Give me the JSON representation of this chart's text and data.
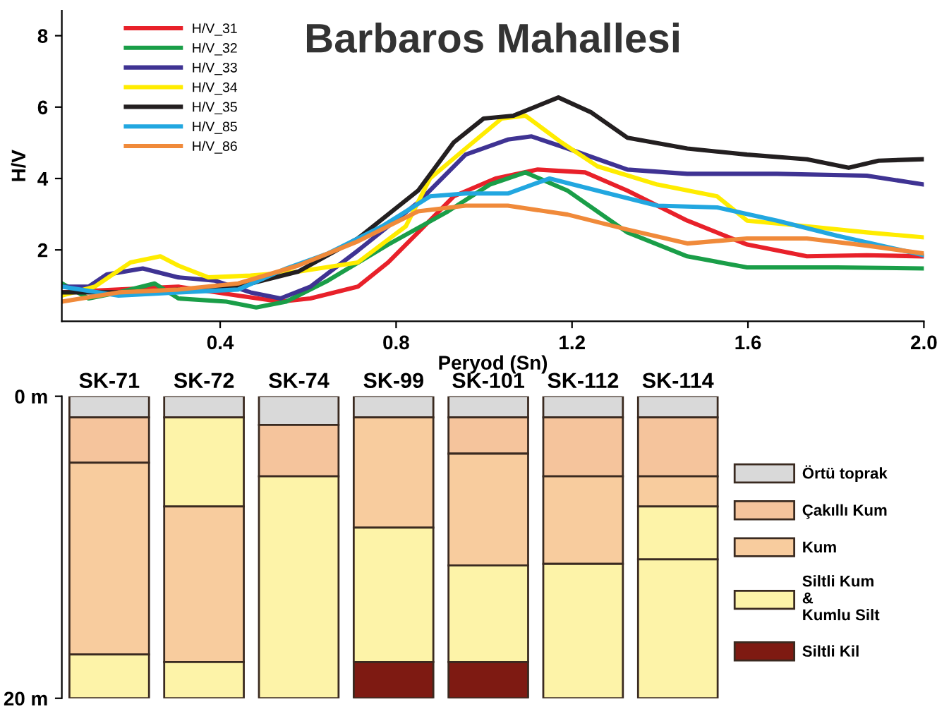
{
  "chart_data": [
    {
      "type": "line",
      "title": "Barbaros Mahallesi",
      "xlabel": "Peryod (Sn)",
      "ylabel": "H/V",
      "xlim": [
        0.04,
        2.0
      ],
      "ylim": [
        0,
        8.7
      ],
      "xticks": [
        0.4,
        0.8,
        1.2,
        1.6,
        {
          "value": 2.0,
          "label": "2.0"
        }
      ],
      "yticks": [
        2,
        4,
        6,
        8
      ],
      "legend": "top left",
      "grid": false,
      "marker": "none",
      "line_style": "solid",
      "series": [
        {
          "name": "H/V_31",
          "color": "#e8212a",
          "x": [
            0.04,
            0.169,
            0.305,
            0.441,
            0.537,
            0.605,
            0.713,
            0.782,
            0.85,
            0.931,
            1.026,
            1.122,
            1.23,
            1.326,
            1.462,
            1.598,
            1.734,
            1.87,
            2.0
          ],
          "values": [
            0.81,
            0.89,
            0.97,
            0.72,
            0.55,
            0.64,
            0.97,
            1.65,
            2.49,
            3.5,
            4.0,
            4.25,
            4.17,
            3.66,
            2.82,
            2.15,
            1.82,
            1.85,
            1.82
          ]
        },
        {
          "name": "H/V_32",
          "color": "#1a9e48",
          "x": [
            0.04,
            0.101,
            0.169,
            0.251,
            0.305,
            0.414,
            0.482,
            0.55,
            0.645,
            0.782,
            0.918,
            1.013,
            1.094,
            1.19,
            1.326,
            1.462,
            1.598,
            1.802,
            2.0
          ],
          "values": [
            1.06,
            0.64,
            0.81,
            1.06,
            0.64,
            0.55,
            0.39,
            0.55,
            1.14,
            2.15,
            3.08,
            3.83,
            4.17,
            3.66,
            2.49,
            1.82,
            1.51,
            1.51,
            1.48
          ]
        },
        {
          "name": "H/V_33",
          "color": "#3f3393",
          "x": [
            0.04,
            0.101,
            0.142,
            0.224,
            0.305,
            0.387,
            0.469,
            0.537,
            0.605,
            0.713,
            0.85,
            0.958,
            1.054,
            1.108,
            1.19,
            1.326,
            1.462,
            1.666,
            1.87,
            2.0
          ],
          "values": [
            0.97,
            0.97,
            1.31,
            1.48,
            1.23,
            1.14,
            0.81,
            0.64,
            0.97,
            1.98,
            3.33,
            4.67,
            5.09,
            5.18,
            4.84,
            4.25,
            4.13,
            4.13,
            4.08,
            3.83
          ]
        },
        {
          "name": "H/V_34",
          "color": "#ffec00",
          "x": [
            0.04,
            0.115,
            0.196,
            0.264,
            0.305,
            0.373,
            0.469,
            0.577,
            0.713,
            0.822,
            0.877,
            0.958,
            1.04,
            1.094,
            1.176,
            1.258,
            1.394,
            1.53,
            1.598,
            1.734,
            1.87,
            2.0
          ],
          "values": [
            0.72,
            0.97,
            1.65,
            1.82,
            1.56,
            1.23,
            1.28,
            1.39,
            1.65,
            2.66,
            4.0,
            4.84,
            5.68,
            5.76,
            5.01,
            4.34,
            3.83,
            3.5,
            2.82,
            2.66,
            2.49,
            2.35
          ]
        },
        {
          "name": "H/V_35",
          "color": "#231f20",
          "x": [
            0.04,
            0.169,
            0.441,
            0.577,
            0.713,
            0.85,
            0.931,
            0.999,
            1.067,
            1.169,
            1.244,
            1.326,
            1.462,
            1.598,
            1.734,
            1.829,
            1.897,
            2.0
          ],
          "values": [
            0.81,
            0.81,
            0.97,
            1.39,
            2.32,
            3.66,
            5.01,
            5.68,
            5.76,
            6.27,
            5.85,
            5.14,
            4.84,
            4.67,
            4.54,
            4.3,
            4.5,
            4.54
          ]
        },
        {
          "name": "H/V_85",
          "color": "#22a7e0",
          "x": [
            0.04,
            0.169,
            0.305,
            0.441,
            0.55,
            0.645,
            0.768,
            0.877,
            0.958,
            1.054,
            1.149,
            1.258,
            1.394,
            1.53,
            1.666,
            1.802,
            2.0
          ],
          "values": [
            0.97,
            0.72,
            0.81,
            0.89,
            1.48,
            1.9,
            2.66,
            3.5,
            3.58,
            3.58,
            4.0,
            3.66,
            3.24,
            3.19,
            2.82,
            2.4,
            1.85
          ]
        },
        {
          "name": "H/V_86",
          "color": "#f08a3a",
          "x": [
            0.04,
            0.169,
            0.305,
            0.441,
            0.577,
            0.713,
            0.85,
            0.958,
            1.054,
            1.19,
            1.326,
            1.462,
            1.598,
            1.734,
            1.87,
            2.0
          ],
          "values": [
            0.55,
            0.81,
            0.89,
            1.06,
            1.56,
            2.24,
            3.08,
            3.24,
            3.24,
            2.99,
            2.57,
            2.18,
            2.32,
            2.32,
            2.12,
            1.9
          ]
        }
      ]
    },
    {
      "type": "bar",
      "stacked": true,
      "categories": [
        "SK-71",
        "SK-72",
        "SK-74",
        "SK-99",
        "SK-101",
        "SK-112",
        "SK-114"
      ],
      "ylim": [
        20,
        0
      ],
      "yticks": [
        {
          "value": 0,
          "label": "0 m"
        },
        {
          "value": 20,
          "label": "20 m"
        }
      ],
      "tick_labels": "y",
      "legend": "right",
      "grid": false,
      "series": [
        {
          "name": "Örtü toprak",
          "color": "#d9d9d9",
          "values": [
            1.4,
            1.4,
            1.9,
            1.4,
            1.4,
            1.4,
            1.4
          ]
        },
        {
          "color": "#fdf3a8",
          "values": [
            null,
            5.9,
            null,
            null,
            null,
            null,
            null
          ]
        },
        {
          "name": "Çakıllı Kum",
          "color": "#f5c49c",
          "values": [
            3.0,
            null,
            3.4,
            null,
            2.4,
            3.9,
            3.9
          ]
        },
        {
          "name": "Kum",
          "color": "#f8cc9e",
          "values": [
            12.7,
            10.3,
            null,
            7.3,
            7.4,
            5.8,
            2.0
          ]
        },
        {
          "name": "Siltli Kum\n&\nKumlu Silt",
          "color": "#fdf3a8",
          "values": [
            2.9,
            2.4,
            14.7,
            8.9,
            6.4,
            8.9,
            3.5
          ]
        },
        {
          "color": "#fdf3a8",
          "values": [
            null,
            null,
            null,
            null,
            null,
            null,
            9.2
          ]
        },
        {
          "name": "Siltli Kil",
          "color": "#7e1a12",
          "values": [
            null,
            null,
            null,
            2.4,
            2.4,
            null,
            null
          ]
        }
      ]
    }
  ]
}
